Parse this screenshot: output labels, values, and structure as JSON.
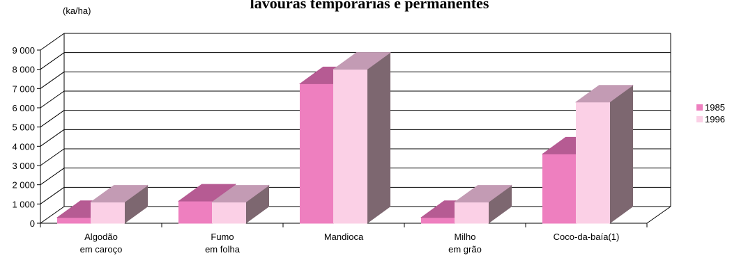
{
  "chart_data": {
    "type": "bar",
    "title": "lavouras temporárias e permanentes",
    "unit_label": "(ka/ha)",
    "categories": [
      [
        "Algodão",
        "em caroço"
      ],
      [
        "Fumo",
        "em folha"
      ],
      [
        "Mandioca"
      ],
      [
        "Milho",
        "em grão"
      ],
      [
        "Coco-da-baía(1)"
      ]
    ],
    "series": [
      {
        "name": "1985",
        "values": [
          300,
          1150,
          7250,
          300,
          3600
        ],
        "colors": {
          "front": "#ee7fbf",
          "top": "#b65b93",
          "side": "#b65b93"
        }
      },
      {
        "name": "1996",
        "values": [
          1100,
          1100,
          8000,
          1100,
          6300
        ],
        "colors": {
          "front": "#fbd0e6",
          "top": "#c39bb4",
          "side": "#7d6770"
        }
      }
    ],
    "ylim": [
      0,
      9000
    ],
    "yticks": [
      "0",
      "1 000",
      "2 000",
      "3 000",
      "4 000",
      "5 000",
      "6 000",
      "7 000",
      "8 000",
      "9 000"
    ],
    "grid": true,
    "legend_position": "right"
  }
}
